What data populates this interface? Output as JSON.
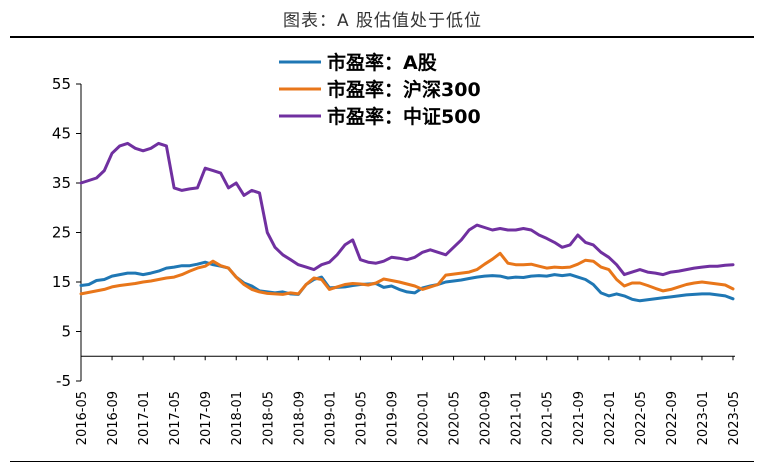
{
  "figure_title": "图表：A 股估值处于低位",
  "chart_data": {
    "type": "line",
    "title": "",
    "xlabel": "",
    "ylabel": "",
    "ylim": [
      -5,
      55
    ],
    "yticks": [
      -5,
      5,
      15,
      25,
      35,
      45,
      55
    ],
    "grid": false,
    "legend_position": "top-center",
    "x_tick_labels": [
      "2016-05",
      "2016-09",
      "2017-01",
      "2017-05",
      "2017-09",
      "2018-01",
      "2018-05",
      "2018-09",
      "2019-01",
      "2019-05",
      "2019-09",
      "2020-01",
      "2020-05",
      "2020-09",
      "2021-01",
      "2021-05",
      "2021-09",
      "2022-01",
      "2022-05",
      "2022-09",
      "2023-01",
      "2023-05"
    ],
    "x": [
      "2016-05",
      "2016-06",
      "2016-07",
      "2016-08",
      "2016-09",
      "2016-10",
      "2016-11",
      "2016-12",
      "2017-01",
      "2017-02",
      "2017-03",
      "2017-04",
      "2017-05",
      "2017-06",
      "2017-07",
      "2017-08",
      "2017-09",
      "2017-10",
      "2017-11",
      "2017-12",
      "2018-01",
      "2018-02",
      "2018-03",
      "2018-04",
      "2018-05",
      "2018-06",
      "2018-07",
      "2018-08",
      "2018-09",
      "2018-10",
      "2018-11",
      "2018-12",
      "2019-01",
      "2019-02",
      "2019-03",
      "2019-04",
      "2019-05",
      "2019-06",
      "2019-07",
      "2019-08",
      "2019-09",
      "2019-10",
      "2019-11",
      "2019-12",
      "2020-01",
      "2020-02",
      "2020-03",
      "2020-04",
      "2020-05",
      "2020-06",
      "2020-07",
      "2020-08",
      "2020-09",
      "2020-10",
      "2020-11",
      "2020-12",
      "2021-01",
      "2021-02",
      "2021-03",
      "2021-04",
      "2021-05",
      "2021-06",
      "2021-07",
      "2021-08",
      "2021-09",
      "2021-10",
      "2021-11",
      "2021-12",
      "2022-01",
      "2022-02",
      "2022-03",
      "2022-04",
      "2022-05",
      "2022-06",
      "2022-07",
      "2022-08",
      "2022-09",
      "2022-10",
      "2022-11",
      "2022-12",
      "2023-01",
      "2023-02",
      "2023-03",
      "2023-04",
      "2023-05"
    ],
    "series": [
      {
        "name": "市盈率：A股",
        "color": "#1f77b4",
        "values": [
          14.3,
          14.5,
          15.3,
          15.5,
          16.2,
          16.5,
          16.8,
          16.8,
          16.5,
          16.8,
          17.2,
          17.8,
          18.0,
          18.3,
          18.3,
          18.6,
          19.0,
          18.5,
          18.2,
          17.8,
          16.0,
          14.8,
          14.2,
          13.2,
          13.0,
          12.8,
          13.0,
          12.6,
          12.5,
          14.5,
          15.5,
          16.0,
          13.8,
          13.9,
          14.0,
          14.3,
          14.5,
          14.6,
          14.7,
          13.9,
          14.2,
          13.5,
          13.0,
          12.8,
          13.8,
          14.2,
          14.5,
          15.0,
          15.2,
          15.4,
          15.7,
          16.0,
          16.2,
          16.3,
          16.2,
          15.8,
          16.0,
          15.9,
          16.2,
          16.3,
          16.2,
          16.5,
          16.3,
          16.5,
          16.0,
          15.5,
          14.5,
          12.8,
          12.2,
          12.6,
          12.2,
          11.5,
          11.2,
          11.4,
          11.6,
          11.8,
          12.0,
          12.2,
          12.4,
          12.5,
          12.6,
          12.6,
          12.4,
          12.2,
          11.6
        ]
      },
      {
        "name": "市盈率：沪深300",
        "color": "#e8761a",
        "values": [
          12.6,
          12.9,
          13.2,
          13.5,
          14.0,
          14.3,
          14.5,
          14.7,
          15.0,
          15.2,
          15.5,
          15.8,
          16.0,
          16.5,
          17.2,
          17.8,
          18.2,
          19.2,
          18.3,
          17.8,
          16.0,
          14.5,
          13.5,
          13.0,
          12.7,
          12.6,
          12.5,
          12.8,
          12.6,
          14.5,
          15.8,
          15.5,
          13.5,
          14.0,
          14.5,
          14.7,
          14.6,
          14.4,
          14.8,
          15.6,
          15.3,
          15.0,
          14.6,
          14.2,
          13.5,
          14.0,
          14.5,
          16.4,
          16.6,
          16.8,
          17.0,
          17.5,
          18.6,
          19.6,
          20.8,
          18.8,
          18.5,
          18.5,
          18.6,
          18.2,
          17.8,
          18.0,
          17.9,
          18.0,
          18.6,
          19.4,
          19.2,
          18.0,
          17.5,
          15.5,
          14.2,
          14.8,
          14.8,
          14.3,
          13.7,
          13.2,
          13.5,
          14.0,
          14.5,
          14.8,
          15.0,
          14.8,
          14.6,
          14.4,
          13.6
        ]
      },
      {
        "name": "市盈率：中证500",
        "color": "#7030a0",
        "values": [
          35.0,
          35.5,
          36.0,
          37.5,
          41.0,
          42.5,
          43.0,
          42.0,
          41.5,
          42.0,
          43.0,
          42.5,
          34.0,
          33.5,
          33.8,
          34.0,
          38.0,
          37.5,
          37.0,
          34.0,
          35.0,
          32.5,
          33.5,
          33.0,
          25.0,
          22.0,
          20.5,
          19.5,
          18.5,
          18.0,
          17.5,
          18.5,
          19.0,
          20.5,
          22.5,
          23.5,
          19.5,
          19.0,
          18.8,
          19.2,
          20.0,
          19.8,
          19.5,
          20.0,
          21.0,
          21.5,
          21.0,
          20.5,
          22.0,
          23.5,
          25.5,
          26.5,
          26.0,
          25.5,
          25.8,
          25.5,
          25.5,
          25.8,
          25.5,
          24.5,
          23.8,
          23.0,
          22.0,
          22.5,
          24.5,
          23.0,
          22.5,
          21.0,
          20.0,
          18.5,
          16.5,
          17.0,
          17.5,
          17.0,
          16.8,
          16.5,
          17.0,
          17.2,
          17.5,
          17.8,
          18.0,
          18.2,
          18.2,
          18.4,
          18.5
        ]
      }
    ]
  }
}
